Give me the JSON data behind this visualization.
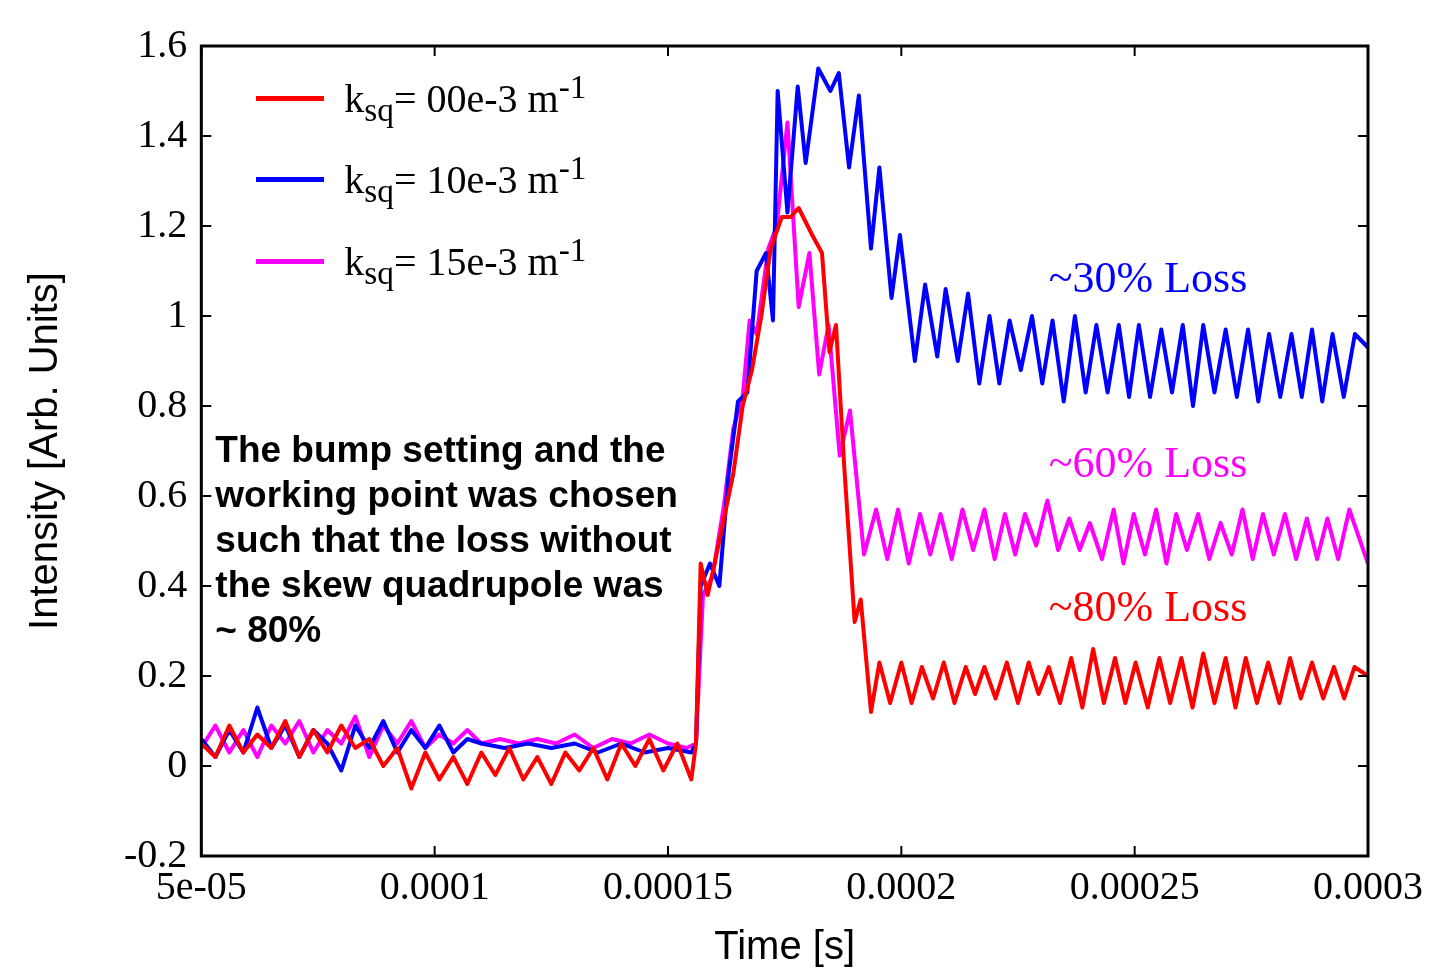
{
  "chart_data": {
    "type": "line",
    "xlabel": "Time [s]",
    "ylabel": "Intensity [Arb. Units]",
    "xlim": [
      5e-05,
      0.0003
    ],
    "xticks": [
      {
        "value": 5e-05,
        "label": "5e-05"
      },
      0.0001,
      0.00015,
      0.0002,
      0.00025,
      0.0003
    ],
    "ylim": [
      -0.2,
      1.6
    ],
    "yticks": [
      -0.2,
      0,
      0.2,
      0.4,
      0.6,
      0.8,
      1,
      1.2,
      1.4,
      1.6
    ],
    "legend": "top left",
    "marker": "none",
    "line_style": "solid",
    "annotations": [
      "~80% Loss",
      "~30% Loss",
      "~60% Loss",
      "The bump setting and the working point was chosen such that the loss without the  skew quadrupole was ~ 80%"
    ],
    "series": [
      {
        "name": "k$_{sq}$= 00e-3 m$^{-1}$",
        "color": "#ff0000",
        "x": [
          5e-05,
          5.3e-05,
          5.6e-05,
          5.9e-05,
          6.2e-05,
          6.5e-05,
          6.8e-05,
          7.1e-05,
          7.4e-05,
          7.7e-05,
          8e-05,
          8.3e-05,
          8.6e-05,
          8.9e-05,
          9.2e-05,
          9.5e-05,
          9.8e-05,
          0.000101,
          0.000104,
          0.000107,
          0.00011,
          0.000113,
          0.000116,
          0.000119,
          0.000122,
          0.000125,
          0.000128,
          0.000131,
          0.000134,
          0.000137,
          0.00014,
          0.000143,
          0.000146,
          0.000149,
          0.000152,
          0.000155,
          0.000156,
          0.000157,
          0.0001585,
          0.00016,
          0.000162,
          0.000164,
          0.000166,
          0.000168,
          0.00017,
          0.000172,
          0.0001744,
          0.0001763,
          0.000178,
          0.0001809,
          0.000183,
          0.0001846,
          0.000186,
          0.0001878,
          0.00019,
          0.0001913,
          0.0001935,
          0.0001953,
          0.0001976,
          0.0002,
          0.0002022,
          0.0002044,
          0.0002068,
          0.0002091,
          0.0002114,
          0.0002138,
          0.0002158,
          0.0002178,
          0.0002202,
          0.0002226,
          0.000225,
          0.0002273,
          0.0002294,
          0.0002316,
          0.000234,
          0.0002364,
          0.0002388,
          0.0002411,
          0.0002434,
          0.0002458,
          0.000248,
          0.0002502,
          0.0002528,
          0.0002553,
          0.0002576,
          0.00026,
          0.0002624,
          0.0002647,
          0.0002671,
          0.0002695,
          0.0002716,
          0.0002738,
          0.0002762,
          0.0002786,
          0.000281,
          0.0002833,
          0.0002856,
          0.000288,
          0.0002904,
          0.0002927,
          0.0002949,
          0.0002971,
          0.0003
        ],
        "values": [
          0.05,
          0.02,
          0.09,
          0.03,
          0.07,
          0.04,
          0.1,
          0.02,
          0.08,
          0.03,
          0.09,
          0.04,
          0.06,
          0.0,
          0.04,
          -0.05,
          0.03,
          -0.03,
          0.02,
          -0.04,
          0.03,
          -0.02,
          0.04,
          -0.03,
          0.02,
          -0.04,
          0.03,
          -0.01,
          0.04,
          -0.03,
          0.05,
          0.0,
          0.06,
          -0.01,
          0.05,
          -0.03,
          0.05,
          0.45,
          0.38,
          0.45,
          0.55,
          0.65,
          0.8,
          0.88,
          1.0,
          1.15,
          1.22,
          1.22,
          1.24,
          1.18,
          1.14,
          0.92,
          0.98,
          0.66,
          0.32,
          0.37,
          0.12,
          0.23,
          0.14,
          0.23,
          0.14,
          0.22,
          0.15,
          0.23,
          0.14,
          0.22,
          0.16,
          0.22,
          0.15,
          0.23,
          0.14,
          0.23,
          0.16,
          0.22,
          0.14,
          0.24,
          0.13,
          0.26,
          0.14,
          0.24,
          0.14,
          0.23,
          0.13,
          0.24,
          0.14,
          0.24,
          0.13,
          0.25,
          0.14,
          0.24,
          0.13,
          0.24,
          0.14,
          0.23,
          0.14,
          0.24,
          0.15,
          0.23,
          0.15,
          0.22,
          0.15,
          0.22,
          0.2
        ]
      },
      {
        "name": "k$_{sq}$= 10e-3 m$^{-1}$",
        "color": "#0000ff",
        "x": [
          5e-05,
          5.3e-05,
          5.6e-05,
          5.9e-05,
          6.2e-05,
          6.5e-05,
          6.8e-05,
          7.1e-05,
          7.4e-05,
          7.7e-05,
          8e-05,
          8.3e-05,
          8.6e-05,
          8.9e-05,
          9.2e-05,
          9.5e-05,
          9.8e-05,
          0.000101,
          0.000104,
          0.000107,
          0.00011,
          0.000115,
          0.00012,
          0.000125,
          0.00013,
          0.000135,
          0.00014,
          0.000145,
          0.00015,
          0.000155,
          0.000156,
          0.000157,
          0.000159,
          0.000161,
          0.000163,
          0.000165,
          0.000167,
          0.000169,
          0.000171,
          0.0001725,
          0.0001735,
          0.0001756,
          0.0001778,
          0.0001795,
          0.0001822,
          0.0001848,
          0.0001866,
          0.0001888,
          0.0001909,
          0.0001935,
          0.0001953,
          0.0001979,
          0.0001997,
          0.0002029,
          0.0002051,
          0.0002077,
          0.0002095,
          0.0002121,
          0.0002143,
          0.0002167,
          0.0002189,
          0.000221,
          0.0002232,
          0.0002256,
          0.000228,
          0.0002302,
          0.0002324,
          0.0002348,
          0.0002372,
          0.0002395,
          0.0002418,
          0.0002442,
          0.0002466,
          0.0002488,
          0.0002509,
          0.0002533,
          0.0002557,
          0.000258,
          0.0002603,
          0.0002625,
          0.0002647,
          0.0002671,
          0.0002695,
          0.0002719,
          0.0002743,
          0.0002765,
          0.0002788,
          0.0002812,
          0.0002836,
          0.0002858,
          0.000288,
          0.0002902,
          0.0002924,
          0.0002948,
          0.0002972,
          0.0003
        ],
        "values": [
          0.06,
          0.02,
          0.08,
          0.03,
          0.13,
          0.04,
          0.09,
          0.02,
          0.08,
          0.05,
          -0.01,
          0.09,
          0.04,
          0.1,
          0.03,
          0.08,
          0.04,
          0.09,
          0.03,
          0.06,
          0.05,
          0.04,
          0.05,
          0.04,
          0.05,
          0.03,
          0.05,
          0.03,
          0.04,
          0.03,
          0.05,
          0.4,
          0.45,
          0.4,
          0.65,
          0.81,
          0.83,
          1.1,
          1.14,
          0.99,
          1.5,
          1.23,
          1.51,
          1.34,
          1.55,
          1.5,
          1.54,
          1.33,
          1.49,
          1.15,
          1.33,
          1.04,
          1.18,
          0.9,
          1.07,
          0.91,
          1.06,
          0.9,
          1.05,
          0.85,
          1.0,
          0.85,
          0.99,
          0.88,
          1.0,
          0.85,
          0.99,
          0.81,
          1.0,
          0.83,
          0.98,
          0.83,
          0.98,
          0.82,
          0.98,
          0.82,
          0.97,
          0.83,
          0.98,
          0.8,
          0.98,
          0.83,
          0.97,
          0.82,
          0.97,
          0.81,
          0.96,
          0.82,
          0.96,
          0.82,
          0.97,
          0.81,
          0.96,
          0.82,
          0.96,
          0.93
        ]
      },
      {
        "name": "k$_{sq}$= 15e-3 m$^{-1}$",
        "color": "#ff00ff",
        "x": [
          5e-05,
          5.3e-05,
          5.6e-05,
          5.9e-05,
          6.2e-05,
          6.5e-05,
          6.8e-05,
          7.1e-05,
          7.4e-05,
          7.7e-05,
          8e-05,
          8.3e-05,
          8.6e-05,
          8.9e-05,
          9.2e-05,
          9.5e-05,
          9.8e-05,
          0.000101,
          0.000104,
          0.000107,
          0.00011,
          0.000114,
          0.000118,
          0.000122,
          0.000126,
          0.00013,
          0.000134,
          0.000138,
          0.000142,
          0.000146,
          0.00015,
          0.000154,
          0.000156,
          0.0001575,
          0.0001595,
          0.000162,
          0.000164,
          0.000166,
          0.0001675,
          0.000169,
          0.0001715,
          0.0001733,
          0.0001756,
          0.000178,
          0.0001803,
          0.0001824,
          0.0001844,
          0.0001868,
          0.000189,
          0.000192,
          0.0001946,
          0.000197,
          0.0001993,
          0.0002016,
          0.000204,
          0.0002062,
          0.0002084,
          0.0002108,
          0.0002131,
          0.0002154,
          0.0002178,
          0.00022,
          0.0002222,
          0.0002244,
          0.0002265,
          0.0002289,
          0.0002313,
          0.0002336,
          0.000236,
          0.0002382,
          0.0002404,
          0.000243,
          0.0002455,
          0.0002476,
          0.0002498,
          0.0002522,
          0.0002546,
          0.0002568,
          0.0002589,
          0.0002612,
          0.0002636,
          0.000266,
          0.0002684,
          0.0002708,
          0.0002731,
          0.0002753,
          0.0002775,
          0.0002798,
          0.0002822,
          0.0002846,
          0.0002869,
          0.0002891,
          0.0002913,
          0.0002936,
          0.000296,
          0.0003
        ],
        "values": [
          0.04,
          0.09,
          0.03,
          0.08,
          0.02,
          0.09,
          0.05,
          0.1,
          0.03,
          0.08,
          0.05,
          0.11,
          0.02,
          0.09,
          0.05,
          0.1,
          0.04,
          0.07,
          0.05,
          0.08,
          0.05,
          0.06,
          0.05,
          0.06,
          0.05,
          0.07,
          0.04,
          0.06,
          0.05,
          0.07,
          0.05,
          0.04,
          0.05,
          0.38,
          0.42,
          0.58,
          0.75,
          0.82,
          0.99,
          0.96,
          1.15,
          1.2,
          1.43,
          1.02,
          1.14,
          0.87,
          0.98,
          0.69,
          0.79,
          0.47,
          0.57,
          0.46,
          0.57,
          0.45,
          0.56,
          0.47,
          0.56,
          0.46,
          0.57,
          0.48,
          0.57,
          0.46,
          0.56,
          0.47,
          0.56,
          0.49,
          0.59,
          0.48,
          0.55,
          0.48,
          0.54,
          0.46,
          0.57,
          0.45,
          0.56,
          0.47,
          0.57,
          0.45,
          0.56,
          0.48,
          0.56,
          0.46,
          0.54,
          0.47,
          0.57,
          0.46,
          0.56,
          0.47,
          0.56,
          0.46,
          0.55,
          0.46,
          0.55,
          0.46,
          0.57,
          0.45
        ]
      }
    ]
  }
}
